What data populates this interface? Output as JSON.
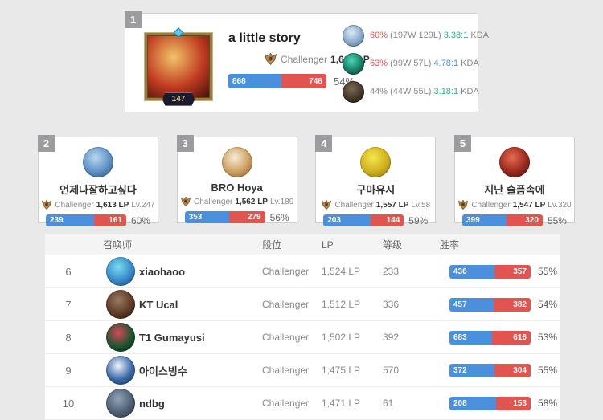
{
  "colors": {
    "win_blue": "#4a90dd",
    "loss_red": "#e2544f",
    "kda_green": "#2daf7f",
    "kda_blue": "#4a90dd",
    "winrate_red": "#e2534d",
    "muted_gray": "#888888"
  },
  "top_player": {
    "rank": "1",
    "name": "a little story",
    "summoner_level": "147",
    "tier": "Challenger",
    "lp": "1,613 LP",
    "wins": "868",
    "losses": "748",
    "win_pct": "54%",
    "avatar": {
      "c1": "#f0c46a",
      "c2": "#c03a20",
      "c3": "#401008"
    },
    "champions": [
      {
        "win_rate": "60%",
        "win_rate_color": "#e2534d",
        "record": "(197W 129L)",
        "kda": "3.38:1",
        "kda_color": "#2daf7f",
        "kda_label": "KDA",
        "avatar": {
          "c1": "#dcecf8",
          "c2": "#86a8c8",
          "c3": "#41628c"
        }
      },
      {
        "win_rate": "63%",
        "win_rate_color": "#e2534d",
        "record": "(99W 57L)",
        "kda": "4.78:1",
        "kda_color": "#4a90dd",
        "kda_label": "KDA",
        "avatar": {
          "c1": "#49d8b2",
          "c2": "#177a66",
          "c3": "#06332c"
        }
      },
      {
        "win_rate": "44%",
        "win_rate_color": "#888888",
        "record": "(44W 55L)",
        "kda": "3.18:1",
        "kda_color": "#2daf7f",
        "kda_label": "KDA",
        "avatar": {
          "c1": "#7a6a52",
          "c2": "#423628",
          "c3": "#17120c"
        }
      }
    ]
  },
  "cards": [
    {
      "rank": "2",
      "name": "언제나잘하고싶다",
      "tier": "Challenger",
      "lp": "1,613 LP",
      "level": "Lv.247",
      "wins": "239",
      "losses": "161",
      "win_pct": "60%",
      "avatar": {
        "c1": "#b8d8f0",
        "c2": "#5c90c4",
        "c3": "#27496e"
      }
    },
    {
      "rank": "3",
      "name": "BRO Hoya",
      "tier": "Challenger",
      "lp": "1,562 LP",
      "level": "Lv.189",
      "wins": "353",
      "losses": "279",
      "win_pct": "56%",
      "avatar": {
        "c1": "#f8ecd8",
        "c2": "#cc9f5f",
        "c3": "#7c5426"
      }
    },
    {
      "rank": "4",
      "name": "구마유시",
      "tier": "Challenger",
      "lp": "1,557 LP",
      "level": "Lv.58",
      "wins": "203",
      "losses": "144",
      "win_pct": "59%",
      "avatar": {
        "c1": "#f4e84e",
        "c2": "#cfaf1d",
        "c3": "#7e650e"
      }
    },
    {
      "rank": "5",
      "name": "지난 슬픔속에",
      "tier": "Challenger",
      "lp": "1,547 LP",
      "level": "Lv.320",
      "wins": "399",
      "losses": "320",
      "win_pct": "55%",
      "avatar": {
        "c1": "#e86a50",
        "c2": "#99281e",
        "c3": "#38100c"
      }
    }
  ],
  "table": {
    "headers": {
      "summoner": "召唤师",
      "tier": "段位",
      "lp": "LP",
      "level": "等级",
      "win_rate": "胜率"
    },
    "rows": [
      {
        "rank": "6",
        "name": "xiaohaoo",
        "tier": "Challenger",
        "lp": "1,524 LP",
        "level": "233",
        "wins": "436",
        "losses": "357",
        "win_pct": "55%",
        "avatar": {
          "c1": "#7adcf0",
          "c2": "#3888c8",
          "c3": "#1c3a60"
        }
      },
      {
        "rank": "7",
        "name": "KT Ucal",
        "tier": "Challenger",
        "lp": "1,512 LP",
        "level": "336",
        "wins": "457",
        "losses": "382",
        "win_pct": "54%",
        "avatar": {
          "c1": "#9a7a62",
          "c2": "#5c3a26",
          "c3": "#241208"
        }
      },
      {
        "rank": "8",
        "name": "T1 Gumayusi",
        "tier": "Challenger",
        "lp": "1,502 LP",
        "level": "392",
        "wins": "683",
        "losses": "616",
        "win_pct": "53%",
        "avatar": {
          "c1": "#d84858",
          "c2": "#1c5430",
          "c3": "#07200f"
        }
      },
      {
        "rank": "9",
        "name": "아이스빙수",
        "tier": "Challenger",
        "lp": "1,475 LP",
        "level": "570",
        "wins": "372",
        "losses": "304",
        "win_pct": "55%",
        "avatar": {
          "c1": "#eef4fa",
          "c2": "#3a68a8",
          "c3": "#122848"
        }
      },
      {
        "rank": "10",
        "name": "ndbg",
        "tier": "Challenger",
        "lp": "1,471 LP",
        "level": "61",
        "wins": "208",
        "losses": "153",
        "win_pct": "58%",
        "avatar": {
          "c1": "#93a2b8",
          "c2": "#4e5f72",
          "c3": "#222c38"
        }
      }
    ]
  }
}
